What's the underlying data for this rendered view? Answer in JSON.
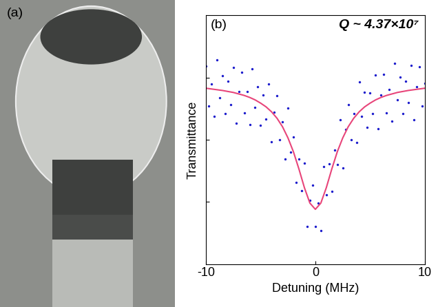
{
  "chart_data": [
    {
      "type": "image",
      "label": "(a)"
    },
    {
      "type": "scatter",
      "label": "(b)",
      "annotation": "Q ~ 4.37×10⁷",
      "x_label": "Detuning (MHz)",
      "y_label": "Transmittance",
      "xlim": [
        -10,
        10
      ],
      "xticks": [
        -10,
        0,
        10
      ],
      "ylim": [
        0,
        1
      ],
      "yticks": [
        0.25,
        0.5,
        0.75
      ],
      "tick_labels": "x",
      "grid": false,
      "series": [
        {
          "type": "scatter",
          "color": "#1a1acc",
          "marker": "o",
          "x": [
            -10,
            -9.75,
            -9.5,
            -9.25,
            -9,
            -8.75,
            -8.5,
            -8.25,
            -8,
            -7.75,
            -7.5,
            -7.25,
            -7,
            -6.75,
            -6.5,
            -6.25,
            -6,
            -5.75,
            -5.5,
            -5.25,
            -5,
            -4.75,
            -4.5,
            -4.25,
            -4,
            -3.75,
            -3.5,
            -3.25,
            -3,
            -2.75,
            -2.5,
            -2.25,
            -2,
            -1.75,
            -1.5,
            -1.25,
            -1,
            -0.75,
            -0.5,
            -0.25,
            0,
            0.25,
            0.5,
            0.75,
            1,
            1.25,
            1.5,
            1.75,
            2,
            2.25,
            2.5,
            2.75,
            3,
            3.25,
            3.5,
            3.75,
            4,
            4.25,
            4.5,
            4.75,
            5,
            5.25,
            5.5,
            5.75,
            6,
            6.25,
            6.5,
            6.75,
            7,
            7.25,
            7.5,
            7.75,
            8,
            8.25,
            8.5,
            8.75,
            9,
            9.25,
            9.5,
            9.75,
            10
          ],
          "values": [
            0.797,
            0.636,
            0.724,
            0.593,
            0.821,
            0.67,
            0.758,
            0.606,
            0.734,
            0.642,
            0.79,
            0.567,
            0.694,
            0.771,
            0.608,
            0.694,
            0.56,
            0.785,
            0.63,
            0.714,
            0.557,
            0.68,
            0.582,
            0.723,
            0.492,
            0.61,
            0.676,
            0.5,
            0.572,
            0.421,
            0.627,
            0.45,
            0.511,
            0.328,
            0.422,
            0.294,
            0.407,
            0.152,
            0.255,
            0.316,
            0.15,
            0.246,
            0.135,
            0.392,
            0.277,
            0.404,
            0.292,
            0.458,
            0.401,
            0.58,
            0.387,
            0.541,
            0.642,
            0.5,
            0.606,
            0.49,
            0.732,
            0.593,
            0.692,
            0.55,
            0.687,
            0.604,
            0.76,
            0.545,
            0.68,
            0.764,
            0.608,
            0.701,
            0.574,
            0.807,
            0.66,
            0.752,
            0.604,
            0.736,
            0.648,
            0.8,
            0.581,
            0.713,
            0.794,
            0.636,
            0.727
          ]
        },
        {
          "type": "line",
          "color": "#e8457a",
          "line_style": "solid",
          "x": [
            -10,
            -9.5,
            -9,
            -8.5,
            -8,
            -7.5,
            -7,
            -6.5,
            -6,
            -5.5,
            -5,
            -4.5,
            -4,
            -3.5,
            -3,
            -2.5,
            -2,
            -1.5,
            -1,
            -0.5,
            0,
            0.5,
            1,
            1.5,
            2,
            2.5,
            3,
            3.5,
            4,
            4.5,
            5,
            5.5,
            6,
            6.5,
            7,
            7.5,
            8,
            8.5,
            9,
            9.5,
            10
          ],
          "values": [
            0.707,
            0.704,
            0.701,
            0.698,
            0.694,
            0.69,
            0.684,
            0.678,
            0.67,
            0.66,
            0.647,
            0.632,
            0.612,
            0.586,
            0.552,
            0.507,
            0.451,
            0.382,
            0.307,
            0.245,
            0.22,
            0.245,
            0.307,
            0.382,
            0.451,
            0.507,
            0.552,
            0.586,
            0.612,
            0.632,
            0.647,
            0.66,
            0.67,
            0.678,
            0.684,
            0.69,
            0.694,
            0.698,
            0.701,
            0.704,
            0.707
          ]
        }
      ]
    }
  ]
}
